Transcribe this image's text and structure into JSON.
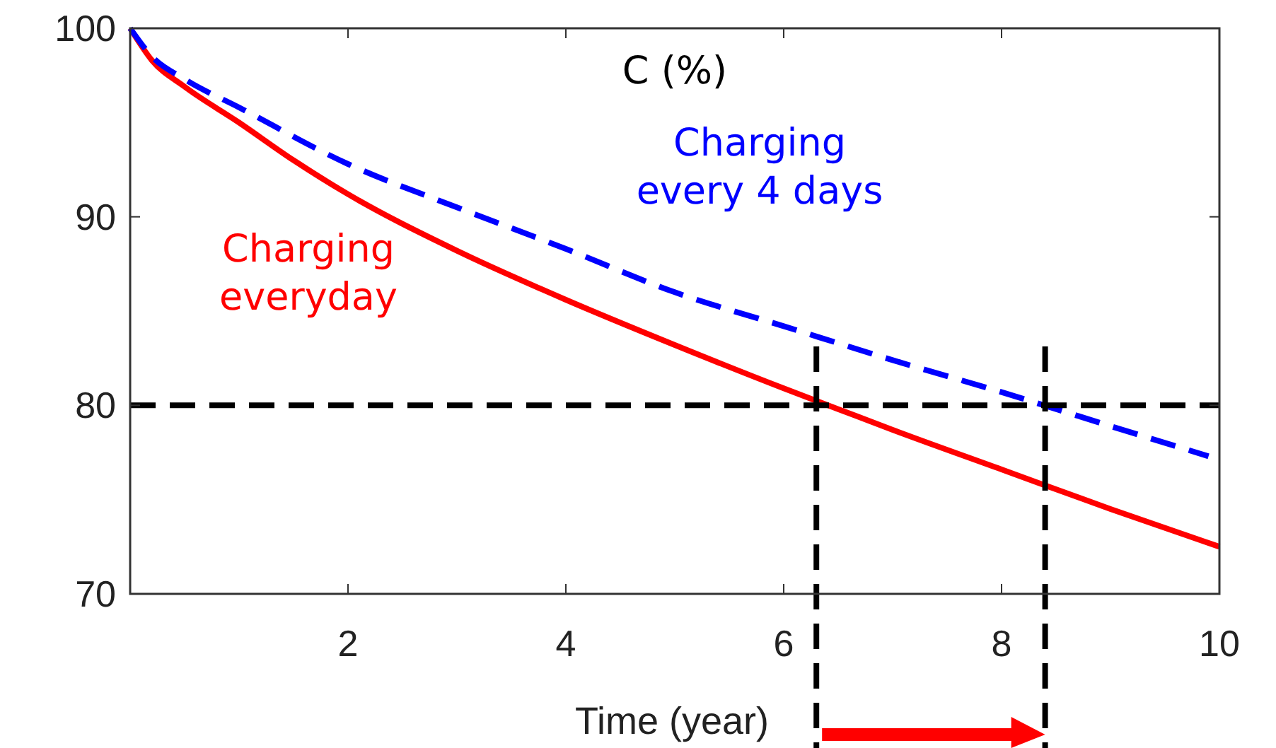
{
  "chart_data": {
    "type": "line",
    "xlabel": "Time (year)",
    "ylabel": "C (%)",
    "xlim": [
      0,
      10
    ],
    "ylim": [
      70,
      100
    ],
    "xticks": [
      2,
      4,
      6,
      8,
      10
    ],
    "yticks": [
      70,
      80,
      90,
      100
    ],
    "grid": false,
    "series": [
      {
        "name": "Charging everyday",
        "color": "#ff0000",
        "line_style": "solid",
        "x": [
          0,
          0.2,
          0.5,
          1,
          1.5,
          2,
          3,
          4,
          5,
          6,
          6.5,
          7,
          8,
          9,
          10
        ],
        "values": [
          100,
          98.3,
          96.9,
          95.0,
          93.0,
          91.2,
          88.2,
          85.6,
          83.2,
          80.9,
          79.8,
          78.7,
          76.6,
          74.5,
          72.5
        ]
      },
      {
        "name": "Charging every 4 days",
        "color": "#0000ff",
        "line_style": "dashed",
        "x": [
          0,
          0.2,
          0.5,
          1,
          2,
          3,
          4,
          5,
          6,
          7,
          8,
          9,
          9.9
        ],
        "values": [
          100,
          98.5,
          97.3,
          95.8,
          92.8,
          90.5,
          88.3,
          86.0,
          84.2,
          82.4,
          80.7,
          78.9,
          77.3
        ]
      }
    ],
    "ref_lines": [
      {
        "axis": "y",
        "value": 80,
        "color": "#000000",
        "line_style": "dashed"
      },
      {
        "axis": "x",
        "value": 6.3,
        "color": "#000000",
        "line_style": "dashed"
      },
      {
        "axis": "x",
        "value": 8.4,
        "color": "#000000",
        "line_style": "dashed"
      }
    ]
  }
}
